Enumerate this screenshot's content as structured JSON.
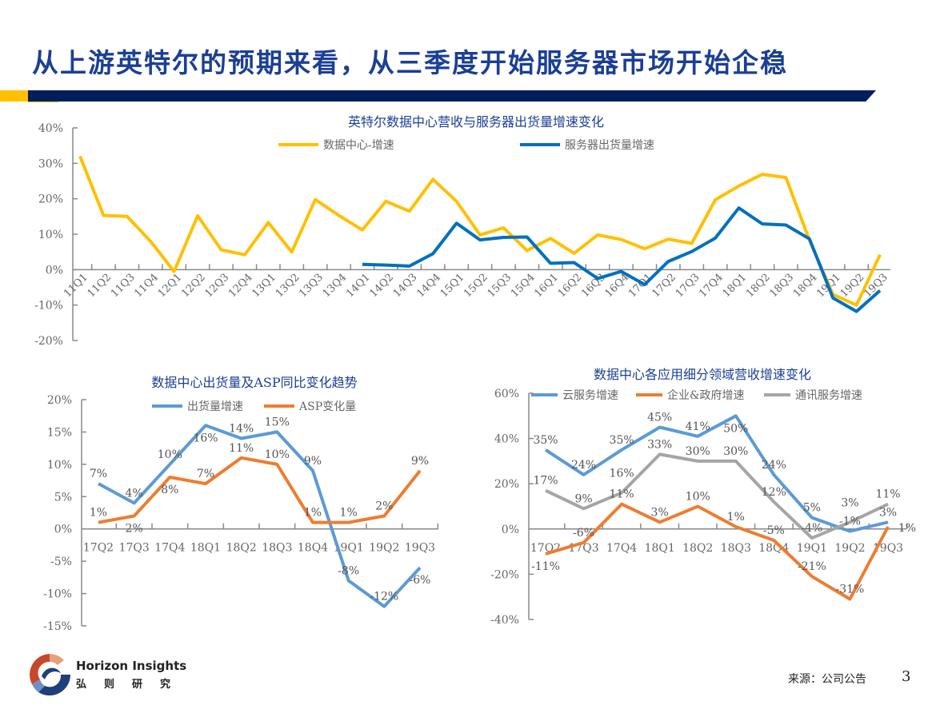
{
  "header": {
    "title": "从上游英特尔的预期来看，从三季度开始服务器市场开始企稳"
  },
  "colors": {
    "title": "#1b3f94",
    "accent_yellow": "#ffc000",
    "accent_navy": "#001e5c"
  },
  "footer": {
    "logo_en": "Horizon Insights",
    "logo_cn": "弘则研究",
    "source": "来源：公司公告",
    "page_number": "3"
  },
  "chart_data": [
    {
      "type": "line",
      "title": "英特尔数据中心营收与服务器出货量增速变化",
      "categories": [
        "11Q1",
        "11Q2",
        "11Q3",
        "11Q4",
        "12Q1",
        "12Q2",
        "12Q3",
        "12Q4",
        "13Q1",
        "13Q2",
        "13Q3",
        "13Q4",
        "14Q1",
        "14Q2",
        "14Q3",
        "14Q4",
        "15Q1",
        "15Q2",
        "15Q3",
        "15Q4",
        "16Q1",
        "16Q2",
        "16Q3",
        "16Q4",
        "17Q1",
        "17Q2",
        "17Q3",
        "17Q4",
        "18Q1",
        "18Q2",
        "18Q3",
        "18Q4",
        "19Q1",
        "19Q2",
        "19Q3"
      ],
      "yticks": [
        "40%",
        "30%",
        "20%",
        "10%",
        "0%",
        "-10%",
        "-20%"
      ],
      "ylim": [
        -20,
        40
      ],
      "legend": "top-center",
      "data_labels": false,
      "series": [
        {
          "name": "数据中心-增速",
          "color": "#ffc000",
          "values": [
            32,
            15.3,
            15,
            8,
            -0.5,
            15.2,
            5.6,
            4.2,
            13.3,
            5,
            19.8,
            15.3,
            11.2,
            19.3,
            16.5,
            25.5,
            19.3,
            9.8,
            11.8,
            5.4,
            8.8,
            4.6,
            9.8,
            8.5,
            5.9,
            8.6,
            7.4,
            19.7,
            23.6,
            26.9,
            26,
            8.3,
            -7,
            -10,
            4.2
          ]
        },
        {
          "name": "服务器出货量增速",
          "color": "#0070c0",
          "values": [
            null,
            null,
            null,
            null,
            null,
            null,
            null,
            null,
            null,
            null,
            null,
            null,
            1.5,
            1.3,
            1.0,
            4.5,
            13.1,
            8.4,
            9.1,
            9.2,
            1.8,
            2.0,
            -2.5,
            -0.5,
            -4.2,
            2.3,
            5.1,
            8.9,
            17.4,
            12.9,
            12.6,
            8.7,
            -8,
            -11.8,
            -5.9
          ]
        }
      ]
    },
    {
      "type": "line",
      "title": "数据中心出货量及ASP同比变化趋势",
      "categories": [
        "17Q2",
        "17Q3",
        "17Q4",
        "18Q1",
        "18Q2",
        "18Q3",
        "18Q4",
        "19Q1",
        "19Q2",
        "19Q3"
      ],
      "yticks": [
        "20%",
        "15%",
        "10%",
        "5%",
        "0%",
        "-5%",
        "-10%",
        "-15%"
      ],
      "ylim": [
        -15,
        20
      ],
      "legend": "top-center",
      "data_labels": true,
      "series": [
        {
          "name": "出货量增速",
          "color": "#5b9bd5",
          "values": [
            7,
            4,
            10,
            16,
            14,
            15,
            9,
            -8,
            -12,
            -6
          ]
        },
        {
          "name": "ASP变化量",
          "color": "#ed7d31",
          "values": [
            1,
            2,
            8,
            7,
            11,
            10,
            1,
            1,
            2,
            9
          ]
        }
      ]
    },
    {
      "type": "line",
      "title": "数据中心各应用细分领域营收增速变化",
      "categories": [
        "17Q2",
        "17Q3",
        "17Q4",
        "18Q1",
        "18Q2",
        "18Q3",
        "18Q4",
        "19Q1",
        "19Q2",
        "19Q3"
      ],
      "yticks": [
        "60%",
        "40%",
        "20%",
        "0%",
        "-20%",
        "-40%"
      ],
      "ylim": [
        -40,
        60
      ],
      "legend": "top",
      "data_labels": true,
      "series": [
        {
          "name": "云服务增速",
          "color": "#5b9bd5",
          "values": [
            35,
            24,
            35,
            45,
            41,
            50,
            24,
            5,
            -1,
            3
          ]
        },
        {
          "name": "企业&政府增速",
          "color": "#ed7d31",
          "values": [
            -11,
            -6,
            11,
            3,
            10,
            1,
            -5,
            -21,
            -31,
            1
          ]
        },
        {
          "name": "通讯服务增速",
          "color": "#a5a5a5",
          "values": [
            17,
            9,
            16,
            33,
            30,
            30,
            12,
            -4,
            3,
            11
          ]
        }
      ]
    }
  ]
}
